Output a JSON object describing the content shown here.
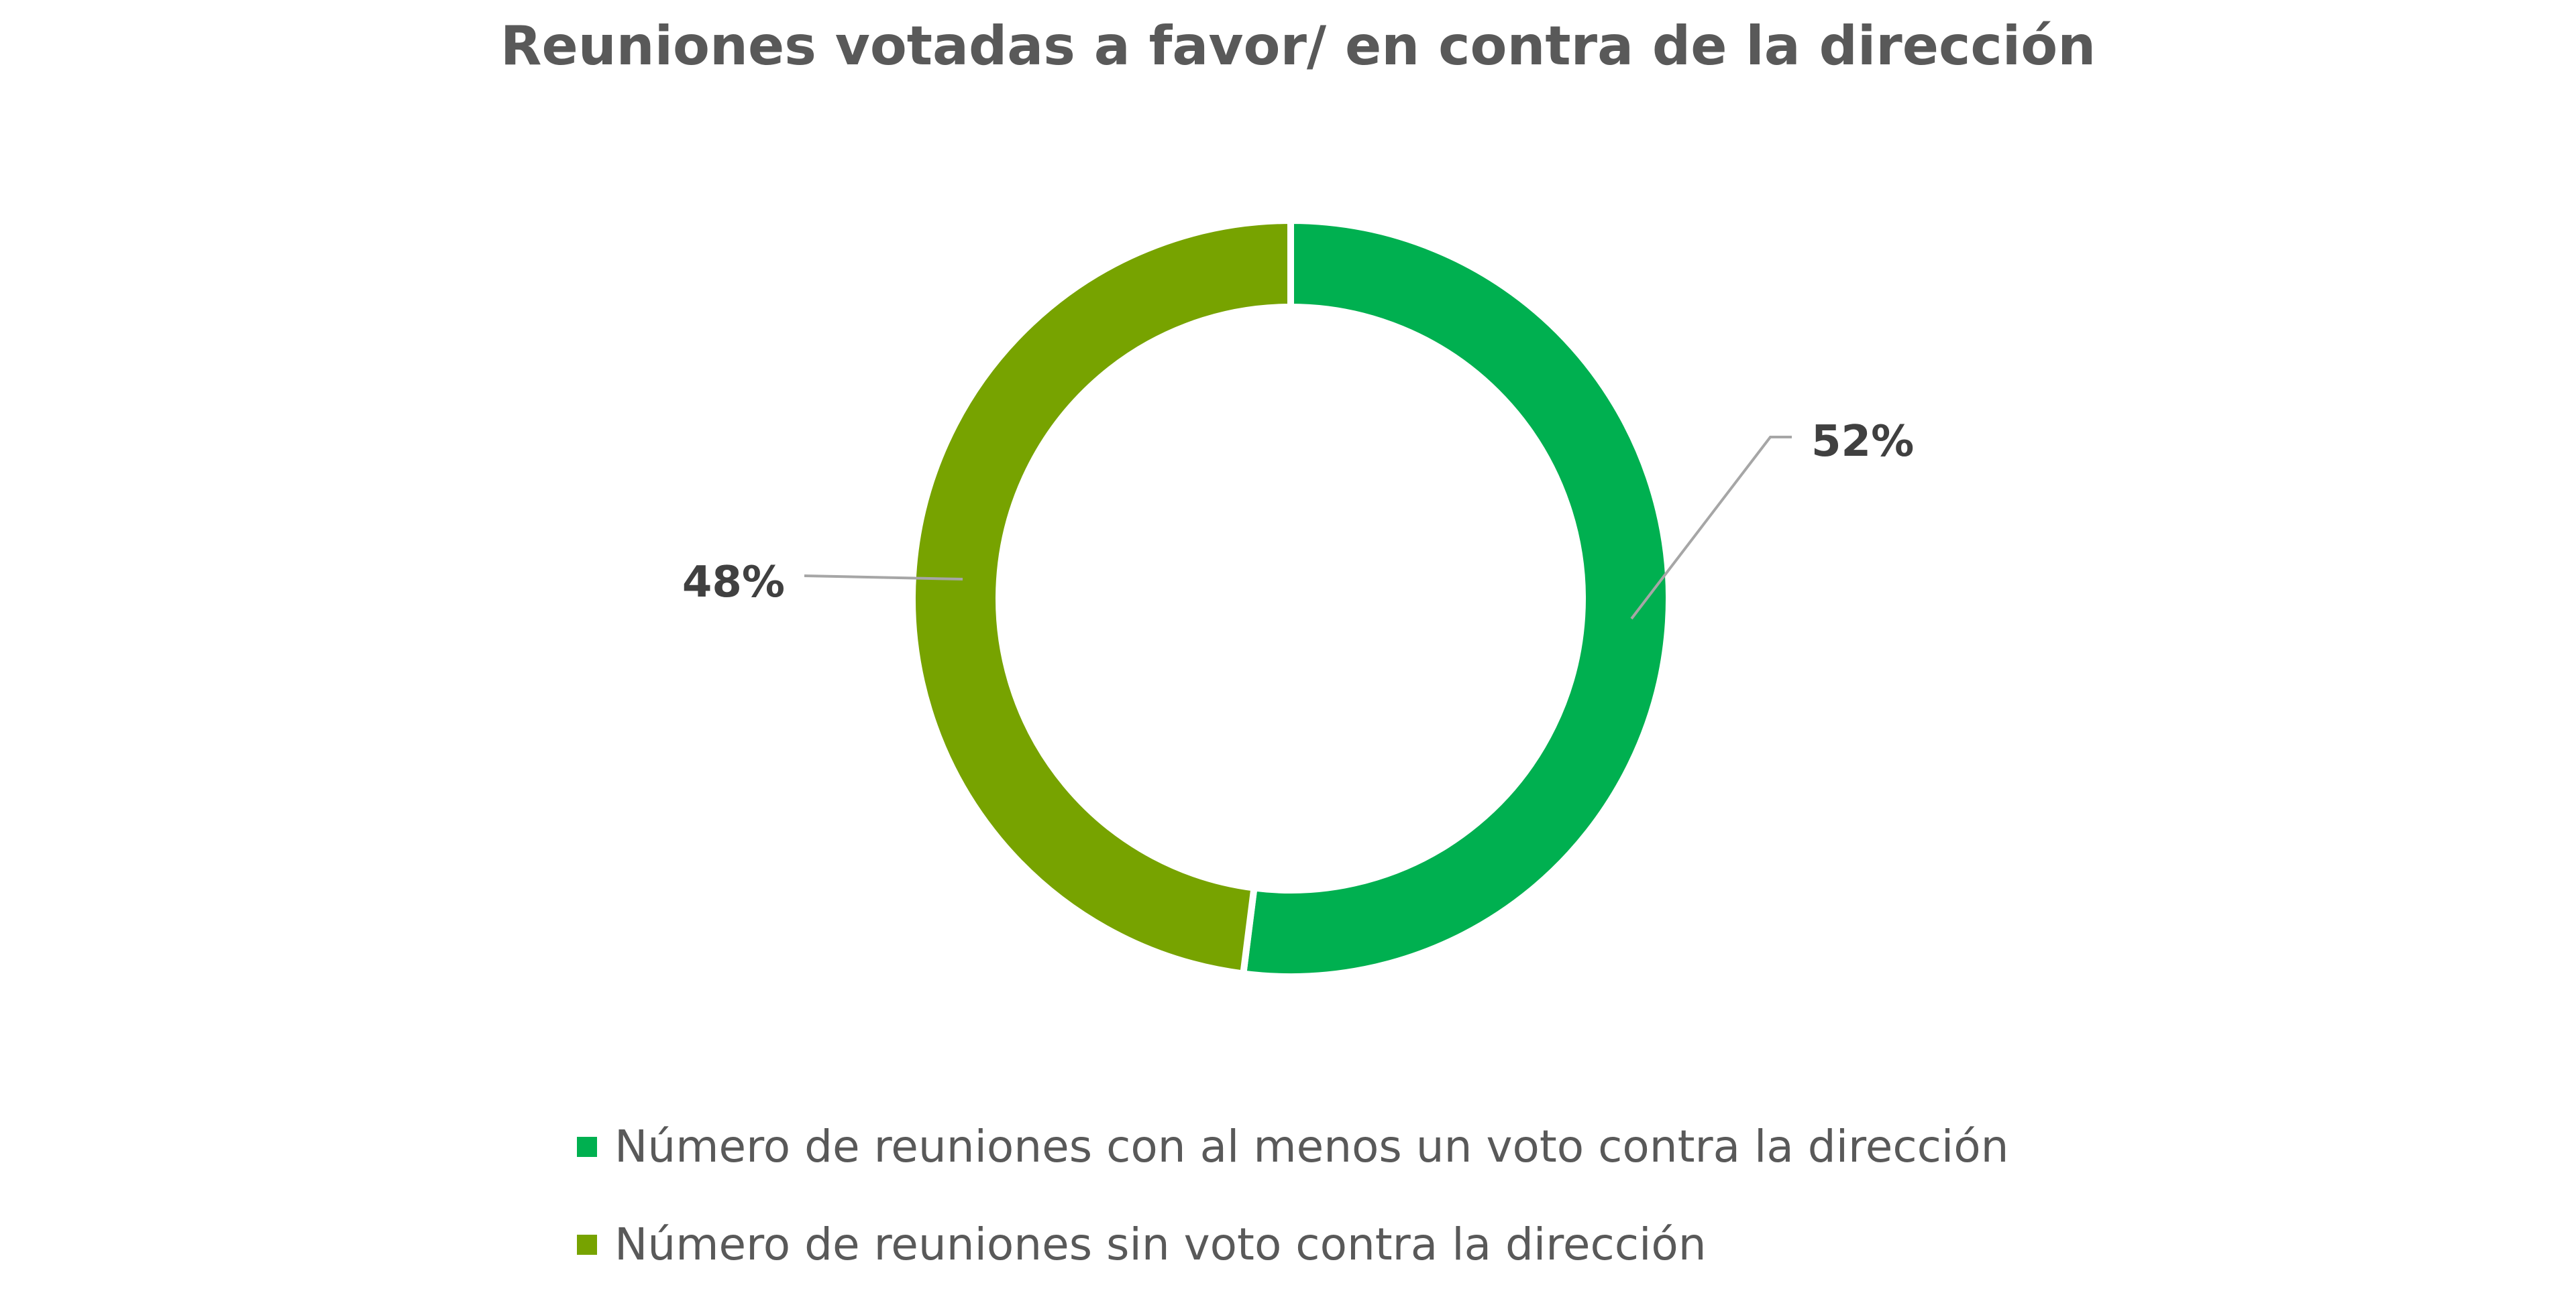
{
  "chart_data": {
    "type": "pie",
    "subtype": "donut",
    "title": "Reuniones votadas a favor/ en contra de la dirección",
    "series": [
      {
        "name": "Número de reuniones con al menos un voto contra la dirección",
        "value": 52,
        "label": "52%",
        "color": "#00B050"
      },
      {
        "name": "Número de reuniones sin voto contra la dirección",
        "value": 48,
        "label": "48%",
        "color": "#77A300"
      }
    ],
    "legend_position": "bottom"
  }
}
